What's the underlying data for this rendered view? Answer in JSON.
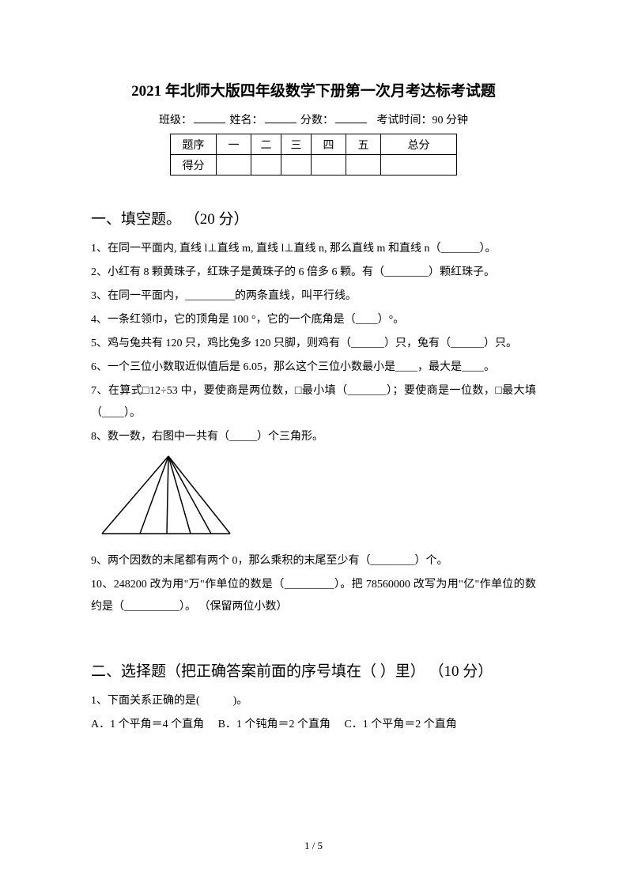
{
  "title": "2021 年北师大版四年级数学下册第一次月考达标考试题",
  "info": {
    "class": "班级：",
    "name": "姓名：",
    "score": "分数：",
    "time": "考试时间：90 分钟"
  },
  "scoreTable": {
    "headers": [
      "题序",
      "一",
      "二",
      "三",
      "四",
      "五",
      "总分"
    ],
    "row2": "得分"
  },
  "section1": {
    "title": "一、填空题。 （20 分）",
    "q1": "1、在同一平面内, 直线 l⊥直线 m, 直线 l⊥直线 n, 那么直线 m 和直线 n（_______）。",
    "q2": "2、小红有 8 颗黄珠子，红珠子是黄珠子的 6 倍多 6 颗。有（________）颗红珠子。",
    "q3": "3、在同一平面内，_________的两条直线，叫平行线。",
    "q4": "4、一条红领巾，它的顶角是 100 °，它的一个底角是（____）°。",
    "q5": "5、鸡与兔共有 120 只，鸡比兔多 120 只脚，则鸡有（______）只，兔有（______）只。",
    "q6": "6、一个三位小数取近似值后是 6.05，那么这个三位小数最小是____，最大是____。",
    "q7": "7、在算式□12÷53 中，要使商是两位数，□最小填（_______）；要使商是一位数，□最大填（____）。",
    "q8": "8、数一数，右图中一共有（_____）个三角形。",
    "q9": "9、两个因数的末尾都有两个 0，那么乘积的末尾至少有（________）个。",
    "q10": "10、248200 改为用\"万\"作单位的数是（_________）。把 78560000 改写为用\"亿\"作单位的数约是（__________）。 （保留两位小数）"
  },
  "section2": {
    "title": "二、选择题（把正确答案前面的序号填在（ ）里） （10 分）",
    "q1": "1、下面关系正确的是(　　　)。",
    "q1a": "A．1 个平角＝4 个直角",
    "q1b": "B．1 个钝角＝2 个直角",
    "q1c": "C．1 个平角＝2 个直角"
  },
  "triangle": {
    "stroke": "#000000",
    "stroke_width": 1.5,
    "width": 170,
    "height": 106,
    "apex": [
      88,
      4
    ],
    "base_left": [
      4,
      102
    ],
    "base_right": [
      166,
      102
    ],
    "inner_points": [
      [
        52,
        102
      ],
      [
        86,
        102
      ],
      [
        116,
        102
      ],
      [
        142,
        102
      ]
    ]
  },
  "pageNum": "1 / 5"
}
